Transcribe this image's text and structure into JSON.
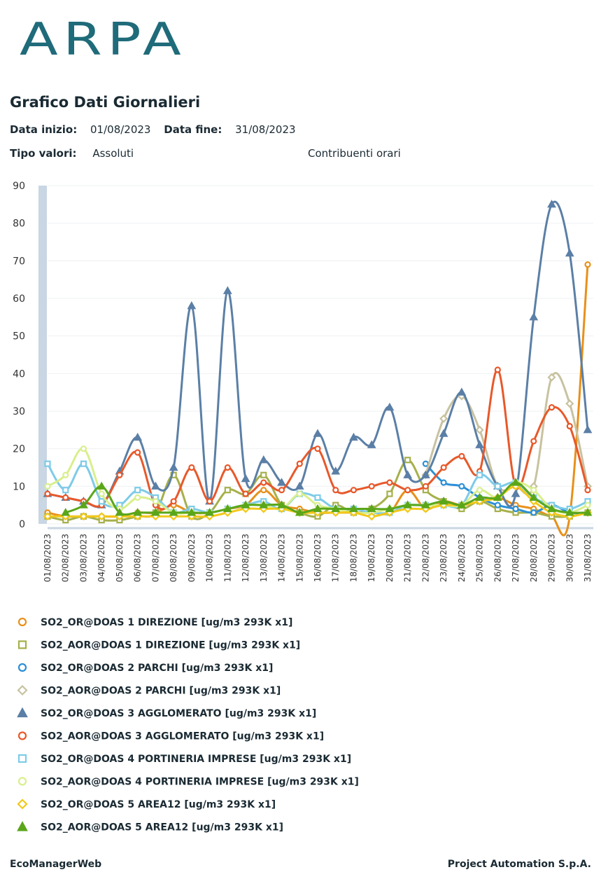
{
  "header": {
    "logo": "ARPA",
    "title": "Grafico Dati Giornalieri"
  },
  "filters": {
    "start_label": "Data inizio:",
    "start": "01/08/2023",
    "end_label": "Data fine:",
    "end": "31/08/2023",
    "type_label": "Tipo valori:",
    "type": "Assoluti",
    "contributions": "Contribuenti orari"
  },
  "chart_data": {
    "type": "line",
    "ylim": [
      0,
      90
    ],
    "yticks": [
      0,
      10,
      20,
      30,
      40,
      50,
      60,
      70,
      80,
      90
    ],
    "grid": true,
    "categories": [
      "01/08/2023",
      "02/08/2023",
      "03/08/2023",
      "04/08/2023",
      "05/08/2023",
      "06/08/2023",
      "07/08/2023",
      "08/08/2023",
      "09/08/2023",
      "10/08/2023",
      "11/08/2023",
      "12/08/2023",
      "13/08/2023",
      "14/08/2023",
      "15/08/2023",
      "16/08/2023",
      "17/08/2023",
      "18/08/2023",
      "19/08/2023",
      "20/08/2023",
      "21/08/2023",
      "22/08/2023",
      "23/08/2023",
      "24/08/2023",
      "25/08/2023",
      "26/08/2023",
      "27/08/2023",
      "28/08/2023",
      "29/08/2023",
      "30/08/2023",
      "31/08/2023"
    ],
    "series": [
      {
        "name": "SO2_OR@DOAS 1 DIREZIONE [ug/m3 293K x1]",
        "color": "#e8901a",
        "marker": "circle",
        "values": [
          3,
          2,
          2,
          2,
          2,
          3,
          3,
          5,
          3,
          3,
          4,
          5,
          9,
          5,
          4,
          3,
          3,
          3,
          3,
          3,
          9,
          4,
          6,
          5,
          6,
          7,
          5,
          4,
          2,
          2,
          69
        ]
      },
      {
        "name": "SO2_AOR@DOAS 1 DIREZIONE [ug/m3 293K x1]",
        "color": "#a6b04a",
        "marker": "square",
        "values": [
          2,
          1,
          2,
          1,
          1,
          2,
          3,
          13,
          2,
          3,
          9,
          8,
          13,
          5,
          3,
          2,
          5,
          3,
          4,
          8,
          17,
          9,
          6,
          4,
          6,
          4,
          3,
          3,
          2,
          2,
          3
        ]
      },
      {
        "name": "SO2_OR@DOAS 2 PARCHI [ug/m3 293K x1]",
        "color": "#2b8fd6",
        "marker": "circle",
        "values": [
          null,
          null,
          null,
          null,
          null,
          null,
          null,
          null,
          null,
          null,
          null,
          null,
          null,
          null,
          null,
          null,
          null,
          null,
          null,
          null,
          null,
          16,
          11,
          10,
          7,
          5,
          4,
          3,
          5,
          3,
          3
        ]
      },
      {
        "name": "SO2_AOR@DOAS 2 PARCHI [ug/m3 293K x1]",
        "color": "#c8c2a0",
        "marker": "diamond",
        "values": [
          null,
          null,
          null,
          null,
          null,
          null,
          null,
          null,
          null,
          null,
          null,
          null,
          null,
          null,
          null,
          null,
          null,
          null,
          null,
          null,
          null,
          13,
          28,
          34,
          25,
          10,
          10,
          10,
          39,
          32,
          10
        ]
      },
      {
        "name": "SO2_OR@DOAS 3 AGGLOMERATO [ug/m3 293K x1]",
        "color": "#5b7fa6",
        "marker": "triangle",
        "values": [
          8,
          7,
          6,
          5,
          14,
          23,
          10,
          15,
          58,
          6,
          62,
          12,
          17,
          11,
          10,
          24,
          14,
          23,
          21,
          31,
          13,
          13,
          24,
          35,
          21,
          10,
          8,
          55,
          85,
          72,
          25
        ]
      },
      {
        "name": "SO2_AOR@DOAS 3 AGGLOMERATO [ug/m3 293K x1]",
        "color": "#e8582a",
        "marker": "circle",
        "values": [
          8,
          7,
          6,
          5,
          13,
          19,
          5,
          6,
          15,
          6,
          15,
          8,
          11,
          9,
          16,
          20,
          9,
          9,
          10,
          11,
          9,
          10,
          15,
          18,
          14,
          41,
          10,
          22,
          31,
          26,
          9
        ]
      },
      {
        "name": "SO2_OR@DOAS 4 PORTINERIA IMPRESE [ug/m3 293K x1]",
        "color": "#7ecbe8",
        "marker": "square",
        "values": [
          16,
          9,
          16,
          6,
          5,
          9,
          7,
          3,
          4,
          3,
          4,
          5,
          6,
          4,
          8,
          7,
          4,
          4,
          3,
          3,
          5,
          5,
          5,
          5,
          13,
          10,
          11,
          7,
          5,
          4,
          6
        ]
      },
      {
        "name": "SO2_AOR@DOAS 4 PORTINERIA IMPRESE [ug/m3 293K x1]",
        "color": "#d8ef8c",
        "marker": "circle",
        "values": [
          10,
          13,
          20,
          8,
          4,
          7,
          6,
          3,
          3,
          3,
          4,
          5,
          5,
          4,
          8,
          5,
          4,
          3,
          3,
          4,
          5,
          5,
          5,
          5,
          9,
          7,
          11,
          9,
          4,
          3,
          5
        ]
      },
      {
        "name": "SO2_OR@DOAS 5 AREA12 [ug/m3 293K x1]",
        "color": "#f2c81a",
        "marker": "diamond",
        "values": [
          2,
          2,
          2,
          2,
          2,
          2,
          2,
          2,
          2,
          2,
          3,
          4,
          4,
          4,
          3,
          3,
          3,
          3,
          2,
          3,
          4,
          4,
          5,
          5,
          6,
          7,
          10,
          6,
          3,
          2,
          3
        ]
      },
      {
        "name": "SO2_AOR@DOAS 5 AREA12 [ug/m3 293K x1]",
        "color": "#5aa61a",
        "marker": "triangle",
        "values": [
          null,
          3,
          5,
          10,
          3,
          3,
          3,
          3,
          3,
          3,
          4,
          5,
          5,
          5,
          3,
          4,
          4,
          4,
          4,
          4,
          5,
          5,
          6,
          5,
          7,
          7,
          11,
          7,
          4,
          3,
          3
        ]
      }
    ]
  },
  "footer": {
    "left": "EcoManagerWeb",
    "right": "Project Automation S.p.A."
  }
}
